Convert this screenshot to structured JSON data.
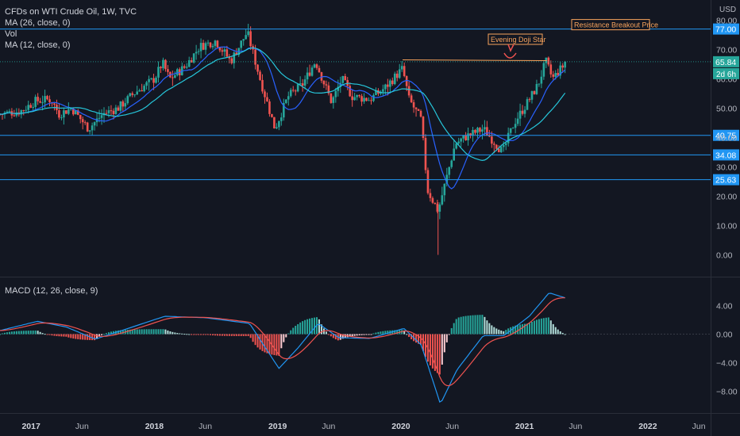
{
  "header": {
    "symbol_line": "CFDs on WTI Crude Oil, 1W, TVC",
    "ma26": "MA (26, close, 0)",
    "vol": "Vol",
    "ma12": "MA (12, close, 0)",
    "macd_label": "MACD (12, 26, close, 9)",
    "unit": "USD"
  },
  "annotations": {
    "resistance": "Resistance Breakout Price",
    "doji": "Evening Doji Star"
  },
  "badges": {
    "current_price": "65.84",
    "countdown": "2d 6h"
  },
  "colors": {
    "background": "#131722",
    "up": "#26a69a",
    "down": "#ef5350",
    "level_line": "#2196f3",
    "macd_line": "#2196f3",
    "signal_line": "#ef5350",
    "ma12": "#2962ff",
    "ma26": "#26c6da",
    "annotation": "#f7a35c"
  },
  "chart_data": [
    {
      "type": "candlestick",
      "title": "CFDs on WTI Crude Oil, 1W, TVC",
      "yunit": "USD",
      "ylim": [
        -2,
        84
      ],
      "y_ticks": [
        0,
        10,
        20,
        30,
        40,
        50,
        60,
        70,
        80
      ],
      "y_tick_labels": [
        "0.00",
        "10.00",
        "20.00",
        "30.00",
        "40.00",
        "50.00",
        "60.00",
        "70.00",
        "80.00"
      ],
      "x_tick_labels": [
        "2017",
        "Jun",
        "2018",
        "Jun",
        "2019",
        "Jun",
        "2020",
        "Jun",
        "2021",
        "Jun",
        "2022",
        "Jun"
      ],
      "x_tick_dates": [
        "2017-01-01",
        "2017-06-01",
        "2018-01-01",
        "2018-06-01",
        "2019-01-01",
        "2019-06-01",
        "2020-01-01",
        "2020-06-01",
        "2021-01-01",
        "2021-06-01",
        "2022-01-01",
        "2022-06-01"
      ],
      "price_path": [
        [
          "2016-10-01",
          48
        ],
        [
          "2016-12-01",
          49
        ],
        [
          "2017-01-15",
          52.5
        ],
        [
          "2017-03-01",
          53
        ],
        [
          "2017-03-25",
          48
        ],
        [
          "2017-05-01",
          50
        ],
        [
          "2017-06-20",
          43
        ],
        [
          "2017-08-01",
          48
        ],
        [
          "2017-09-15",
          50
        ],
        [
          "2017-11-01",
          55
        ],
        [
          "2018-01-01",
          60
        ],
        [
          "2018-01-25",
          65.5
        ],
        [
          "2018-02-15",
          60
        ],
        [
          "2018-04-01",
          64
        ],
        [
          "2018-05-15",
          71
        ],
        [
          "2018-07-01",
          73
        ],
        [
          "2018-08-15",
          66
        ],
        [
          "2018-10-03",
          76
        ],
        [
          "2018-11-10",
          60
        ],
        [
          "2018-12-24",
          43
        ],
        [
          "2019-02-01",
          54
        ],
        [
          "2019-03-15",
          58
        ],
        [
          "2019-04-23",
          66
        ],
        [
          "2019-06-10",
          52
        ],
        [
          "2019-07-10",
          60
        ],
        [
          "2019-08-10",
          54
        ],
        [
          "2019-10-01",
          53
        ],
        [
          "2019-11-15",
          57
        ],
        [
          "2020-01-06",
          63.5
        ],
        [
          "2020-01-25",
          53
        ],
        [
          "2020-03-01",
          46
        ],
        [
          "2020-03-20",
          22
        ],
        [
          "2020-04-20",
          15
        ],
        [
          "2020-05-10",
          24
        ],
        [
          "2020-06-10",
          38
        ],
        [
          "2020-07-15",
          40.5
        ],
        [
          "2020-09-01",
          43
        ],
        [
          "2020-10-28",
          35
        ],
        [
          "2020-12-01",
          45
        ],
        [
          "2021-01-10",
          52
        ],
        [
          "2021-02-10",
          58
        ],
        [
          "2021-03-05",
          66
        ],
        [
          "2021-03-25",
          60
        ],
        [
          "2021-04-15",
          63
        ],
        [
          "2021-05-07",
          65.84
        ]
      ],
      "levels": [
        {
          "value": 77.0,
          "label": "77.00"
        },
        {
          "value": 40.75,
          "label": "40.75"
        },
        {
          "value": 34.08,
          "label": "34.08"
        },
        {
          "value": 25.63,
          "label": "25.63"
        }
      ],
      "current_price": 65.84,
      "resistance_line": {
        "from": [
          "2020-01-06",
          66.5
        ],
        "to": [
          "2021-03-08",
          66.2
        ]
      },
      "annotations": [
        "Resistance Breakout Price",
        "Evening Doji Star"
      ],
      "series": [
        {
          "name": "MA (12, close, 0)"
        },
        {
          "name": "MA (26, close, 0)"
        }
      ]
    },
    {
      "type": "line",
      "title": "MACD (12, 26, close, 9)",
      "ylim": [
        -10.5,
        7.5
      ],
      "y_ticks": [
        4,
        0,
        -4,
        -8
      ],
      "y_tick_labels": [
        "4.00",
        "0.00",
        "−4.00",
        "−8.00"
      ],
      "macd_path": [
        [
          "2016-10-01",
          0.5
        ],
        [
          "2017-01-20",
          1.8
        ],
        [
          "2017-04-15",
          1.0
        ],
        [
          "2017-07-10",
          -0.7
        ],
        [
          "2017-10-15",
          0.8
        ],
        [
          "2018-02-01",
          2.5
        ],
        [
          "2018-06-01",
          2.3
        ],
        [
          "2018-10-10",
          1.5
        ],
        [
          "2018-11-20",
          -1.5
        ],
        [
          "2019-01-05",
          -4.8
        ],
        [
          "2019-03-01",
          -2.0
        ],
        [
          "2019-05-01",
          1.5
        ],
        [
          "2019-07-01",
          -0.5
        ],
        [
          "2019-10-01",
          -0.6
        ],
        [
          "2020-01-10",
          0.8
        ],
        [
          "2020-03-01",
          -1.5
        ],
        [
          "2020-04-01",
          -6.0
        ],
        [
          "2020-04-27",
          -9.8
        ],
        [
          "2020-06-15",
          -5.0
        ],
        [
          "2020-09-01",
          -0.2
        ],
        [
          "2020-11-01",
          -0.2
        ],
        [
          "2021-01-15",
          2.5
        ],
        [
          "2021-03-15",
          5.8
        ],
        [
          "2021-05-07",
          5.0
        ]
      ],
      "series": [
        {
          "name": "MACD"
        },
        {
          "name": "Signal"
        },
        {
          "name": "Histogram"
        }
      ]
    }
  ]
}
